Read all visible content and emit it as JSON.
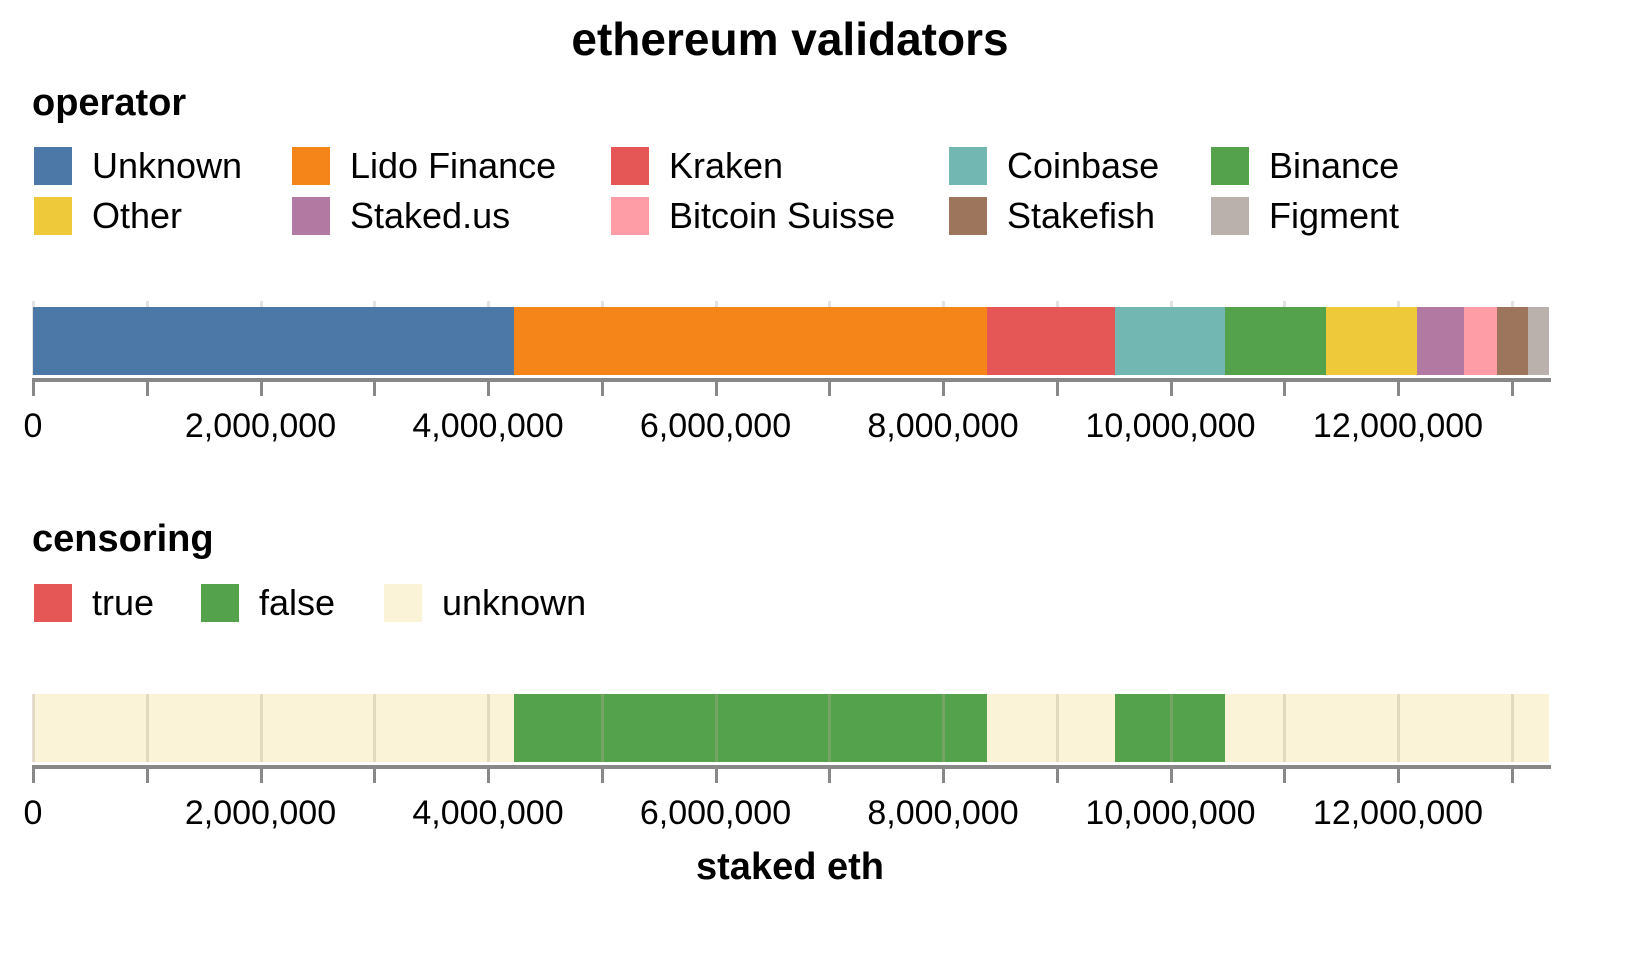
{
  "title": "ethereum validators",
  "colors": {
    "axis": "#888888",
    "grid": "#d9d9d9"
  },
  "operator_legend": {
    "title": "operator",
    "items": [
      {
        "label": "Unknown",
        "color": "#4c78a8"
      },
      {
        "label": "Lido Finance",
        "color": "#f58518"
      },
      {
        "label": "Kraken",
        "color": "#e45756"
      },
      {
        "label": "Coinbase",
        "color": "#72b7b2"
      },
      {
        "label": "Binance",
        "color": "#54a24b"
      },
      {
        "label": "Other",
        "color": "#eeca3b"
      },
      {
        "label": "Staked.us",
        "color": "#b279a2"
      },
      {
        "label": "Bitcoin Suisse",
        "color": "#ff9da6"
      },
      {
        "label": "Stakefish",
        "color": "#9d755d"
      },
      {
        "label": "Figment",
        "color": "#bab0ac"
      }
    ]
  },
  "censoring_legend": {
    "title": "censoring",
    "items": [
      {
        "label": "true",
        "color": "#e45756"
      },
      {
        "label": "false",
        "color": "#54a24b"
      },
      {
        "label": "unknown",
        "color": "#fbf3d8"
      }
    ]
  },
  "axis": {
    "ticks": [
      0,
      1000000,
      2000000,
      3000000,
      4000000,
      5000000,
      6000000,
      7000000,
      8000000,
      9000000,
      10000000,
      11000000,
      12000000,
      13000000
    ],
    "labels": [
      {
        "value": 0,
        "text": "0"
      },
      {
        "value": 2000000,
        "text": "2,000,000"
      },
      {
        "value": 4000000,
        "text": "4,000,000"
      },
      {
        "value": 6000000,
        "text": "6,000,000"
      },
      {
        "value": 8000000,
        "text": "8,000,000"
      },
      {
        "value": 10000000,
        "text": "10,000,000"
      },
      {
        "value": 12000000,
        "text": "12,000,000"
      }
    ],
    "xlabel": "staked eth"
  },
  "chart_data": [
    {
      "type": "bar",
      "orientation": "horizontal-stacked",
      "title": "ethereum validators — operator",
      "xlabel": "staked eth",
      "ylabel": "",
      "xlim": [
        0,
        13330000
      ],
      "legend_title": "operator",
      "legend_position": "top",
      "grid": true,
      "categories": [
        "Unknown",
        "Lido Finance",
        "Kraken",
        "Coinbase",
        "Binance",
        "Other",
        "Staked.us",
        "Bitcoin Suisse",
        "Stakefish",
        "Figment"
      ],
      "values": [
        4230000,
        4160000,
        1120000,
        970000,
        890000,
        800000,
        410000,
        290000,
        270000,
        190000
      ],
      "colors": [
        "#4c78a8",
        "#f58518",
        "#e45756",
        "#72b7b2",
        "#54a24b",
        "#eeca3b",
        "#b279a2",
        "#ff9da6",
        "#9d755d",
        "#bab0ac"
      ]
    },
    {
      "type": "bar",
      "orientation": "horizontal-stacked",
      "title": "ethereum validators — censoring",
      "xlabel": "staked eth",
      "ylabel": "",
      "xlim": [
        0,
        13330000
      ],
      "legend_title": "censoring",
      "legend_position": "top",
      "legend_entries": [
        "true",
        "false",
        "unknown"
      ],
      "grid": true,
      "segments": [
        {
          "category": "unknown",
          "operator": "Unknown",
          "value": 4230000,
          "color": "#fbf3d8"
        },
        {
          "category": "false",
          "operator": "Lido Finance",
          "value": 4160000,
          "color": "#54a24b"
        },
        {
          "category": "unknown",
          "operator": "Kraken",
          "value": 1120000,
          "color": "#fbf3d8"
        },
        {
          "category": "false",
          "operator": "Coinbase",
          "value": 970000,
          "color": "#54a24b"
        },
        {
          "category": "unknown",
          "operator": "Binance..Figment",
          "value": 2850000,
          "color": "#fbf3d8"
        }
      ],
      "totals": {
        "true": 0,
        "false": 5130000,
        "unknown": 8200000
      }
    }
  ]
}
